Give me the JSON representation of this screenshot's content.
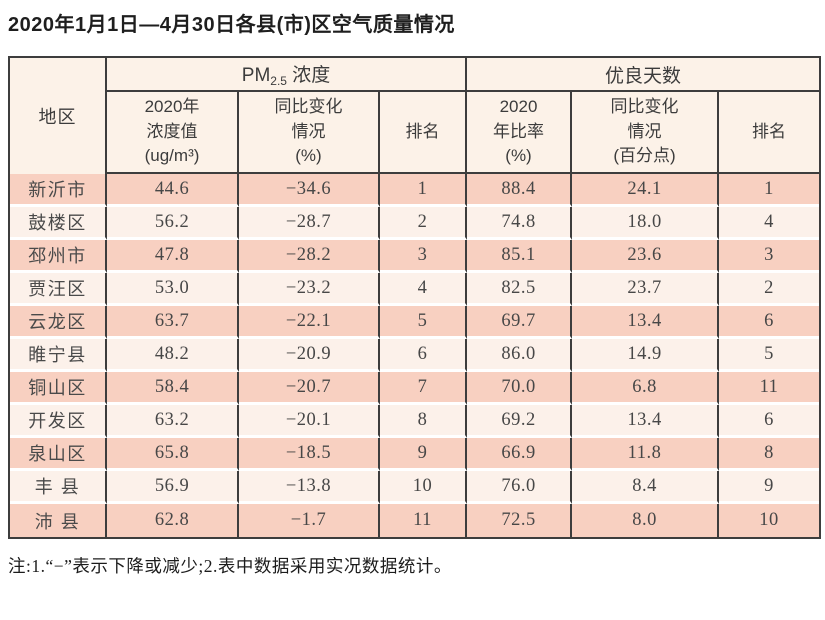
{
  "title": "2020年1月1日—4月30日各县(市)区空气质量情况",
  "table": {
    "region_header": "地区",
    "pm_group": {
      "prefix": "PM",
      "sub": "2.5",
      "suffix": " 浓度"
    },
    "days_group": "优良天数",
    "sub_headers": {
      "pm_value": "2020年\n浓度值\n(ug/m³)",
      "pm_change": "同比变化\n情况\n(%)",
      "pm_rank": "排名",
      "days_ratio": "2020\n年比率\n(%)",
      "days_change": "同比变化\n情况\n(百分点)",
      "days_rank": "排名"
    },
    "rows": [
      [
        "新沂市",
        "44.6",
        "−34.6",
        "1",
        "88.4",
        "24.1",
        "1"
      ],
      [
        "鼓楼区",
        "56.2",
        "−28.7",
        "2",
        "74.8",
        "18.0",
        "4"
      ],
      [
        "邳州市",
        "47.8",
        "−28.2",
        "3",
        "85.1",
        "23.6",
        "3"
      ],
      [
        "贾汪区",
        "53.0",
        "−23.2",
        "4",
        "82.5",
        "23.7",
        "2"
      ],
      [
        "云龙区",
        "63.7",
        "−22.1",
        "5",
        "69.7",
        "13.4",
        "6"
      ],
      [
        "睢宁县",
        "48.2",
        "−20.9",
        "6",
        "86.0",
        "14.9",
        "5"
      ],
      [
        "铜山区",
        "58.4",
        "−20.7",
        "7",
        "70.0",
        "6.8",
        "11"
      ],
      [
        "开发区",
        "63.2",
        "−20.1",
        "8",
        "69.2",
        "13.4",
        "6"
      ],
      [
        "泉山区",
        "65.8",
        "−18.5",
        "9",
        "66.9",
        "11.8",
        "8"
      ],
      [
        "丰 县",
        "56.9",
        "−13.8",
        "10",
        "76.0",
        "8.4",
        "9"
      ],
      [
        "沛 县",
        "62.8",
        "−1.7",
        "11",
        "72.5",
        "8.0",
        "10"
      ]
    ]
  },
  "note": "注:1.“−”表示下降或减少;2.表中数据采用实况数据统计。",
  "colors": {
    "row_odd": "#f8d0c1",
    "row_even": "#fcf1ea",
    "header_bg": "#fcf2e8",
    "border": "#3d3d3d"
  }
}
